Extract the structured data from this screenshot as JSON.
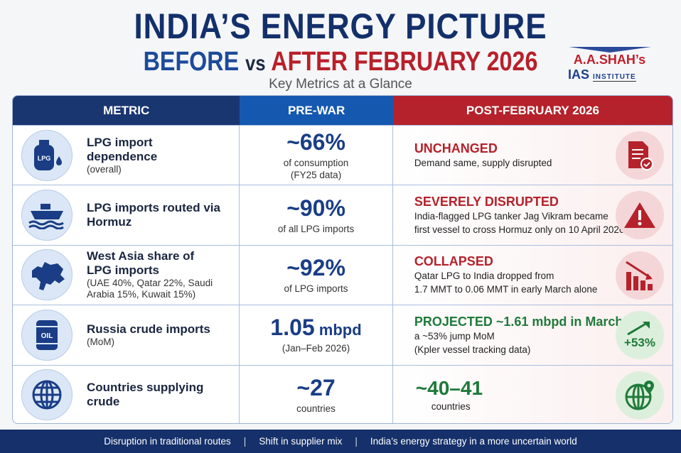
{
  "title": {
    "line1": "INDIA’S ENERGY PICTURE",
    "before": "BEFORE",
    "vs": "vs",
    "after": "AFTER FEBRUARY 2026",
    "subtitle": "Key Metrics at a Glance"
  },
  "logo": {
    "name": "A.A.SHAH’s",
    "ias": "IAS",
    "institute": "INSTITUTE"
  },
  "headers": {
    "metric": "METRIC",
    "pre": "PRE-WAR",
    "post": "POST-FEBRUARY 2026"
  },
  "rows": [
    {
      "icon": "lpg-cylinder-icon",
      "metric": "LPG import dependence",
      "metric_sub": "(overall)",
      "pre_value": "~66%",
      "pre_unit": "",
      "pre_note1": "of consumption",
      "pre_note2": "(FY25 data)",
      "post_status": "UNCHANGED",
      "post_status_color": "#b5222b",
      "post_desc1": "Demand same, supply disrupted",
      "post_desc2": "",
      "post_icon": "document-check-icon"
    },
    {
      "icon": "ship-icon",
      "metric": "LPG imports routed via Hormuz",
      "metric_sub": "",
      "pre_value": "~90%",
      "pre_unit": "",
      "pre_note1": "of all LPG imports",
      "pre_note2": "",
      "post_status": "SEVERELY DISRUPTED",
      "post_status_color": "#b5222b",
      "post_desc1": "India-flagged LPG tanker Jag Vikram became",
      "post_desc2": "first vessel to cross Hormuz only on 10 April 2026",
      "post_icon": "warning-icon"
    },
    {
      "icon": "west-asia-map-icon",
      "metric": "West Asia share of LPG imports",
      "metric_sub": "(UAE 40%, Qatar 22%, Saudi Arabia 15%, Kuwait 15%)",
      "pre_value": "~92%",
      "pre_unit": "",
      "pre_note1": "of LPG imports",
      "pre_note2": "",
      "post_status": "COLLAPSED",
      "post_status_color": "#b5222b",
      "post_desc1": "Qatar LPG to India dropped from",
      "post_desc2": "1.7 MMT to 0.06 MMT in early March alone",
      "post_icon": "declining-chart-icon"
    },
    {
      "icon": "oil-barrel-icon",
      "metric": "Russia crude imports",
      "metric_sub": "(MoM)",
      "pre_value": "1.05",
      "pre_unit": " mbpd",
      "pre_note1": "(Jan–Feb 2026)",
      "pre_note2": "",
      "post_status": "PROJECTED ~1.61 mbpd in March",
      "post_status_color": "#1f7a3a",
      "post_desc1": "a ~53% jump MoM",
      "post_desc2": "(Kpler vessel tracking data)",
      "post_icon": "rising-arrow-icon",
      "post_icon_text": "+53%"
    },
    {
      "icon": "globe-icon",
      "metric": "Countries supplying crude",
      "metric_sub": "",
      "pre_value": "~27",
      "pre_unit": "",
      "pre_note1": "countries",
      "pre_note2": "",
      "post_status": "~40–41",
      "post_status_color": "#1f7a3a",
      "post_desc1": "countries",
      "post_desc2": "",
      "post_icon": "globe-pin-icon"
    }
  ],
  "footer": [
    "Disruption in traditional routes",
    "Shift in supplier mix",
    "India’s energy strategy in a more uncertain world"
  ]
}
